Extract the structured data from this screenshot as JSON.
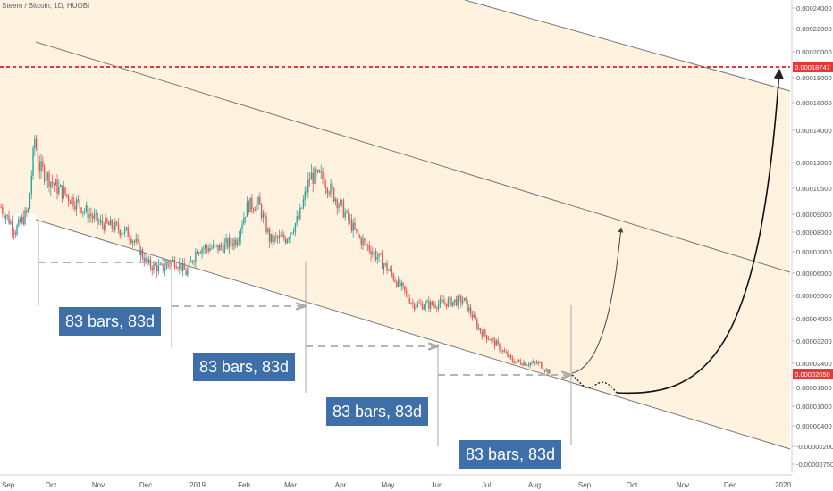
{
  "header": {
    "title": "Steem / Bitcoin, 1D, HUOBI"
  },
  "colors": {
    "up": "#26a69a",
    "down": "#ef5350",
    "channel_fill": "#fff3e0",
    "channel_line": "#6b6b6b",
    "target_line": "#e53935",
    "label_box": "#3f6fa8",
    "price_tag": "#e53935"
  },
  "chart_data": {
    "type": "candlestick",
    "ylim": [
      -7.5e-06,
      0.00024
    ],
    "y_ticks": [
      "0.00024000",
      "0.00022000",
      "0.00020000",
      "0.00018000",
      "0.00016000",
      "0.00014000",
      "0.00012000",
      "0.00010500",
      "0.00009000",
      "0.00008000",
      "0.00007000",
      "0.00006000",
      "0.00005000",
      "0.00004000",
      "0.00003200",
      "0.00002400",
      "0.00001600",
      "0.00001000",
      "0.00000400",
      "-0.00000200",
      "-0.00000750"
    ],
    "x_ticks": [
      "Sep",
      "Oct",
      "Nov",
      "Dec",
      "2019",
      "Feb",
      "Mar",
      "Apr",
      "May",
      "Jun",
      "Jul",
      "Aug",
      "Sep",
      "Oct",
      "Nov",
      "Dec",
      "2020"
    ],
    "target_price": "0.00018747",
    "current_price": "0.00002050",
    "annotations": [
      "83 bars, 83d",
      "83 bars, 83d",
      "83 bars, 83d",
      "83 bars, 83d"
    ],
    "price_path": [
      [
        "2018-09-01",
        9.4e-05
      ],
      [
        "2018-09-10",
        8.1e-05
      ],
      [
        "2018-09-18",
        9.2e-05
      ],
      [
        "2018-09-22",
        0.000135
      ],
      [
        "2018-09-25",
        0.000117
      ],
      [
        "2018-10-05",
        0.000106
      ],
      [
        "2018-10-20",
        9.5e-05
      ],
      [
        "2018-11-01",
        8.5e-05
      ],
      [
        "2018-11-10",
        8.3e-05
      ],
      [
        "2018-11-20",
        7.9e-05
      ],
      [
        "2018-12-01",
        6.4e-05
      ],
      [
        "2018-12-10",
        6.2e-05
      ],
      [
        "2018-12-18",
        6.6e-05
      ],
      [
        "2018-12-25",
        6e-05
      ],
      [
        "2019-01-01",
        7.2e-05
      ],
      [
        "2019-01-15",
        7.2e-05
      ],
      [
        "2019-01-25",
        7.6e-05
      ],
      [
        "2019-02-01",
        9.5e-05
      ],
      [
        "2019-02-08",
        9.6e-05
      ],
      [
        "2019-02-15",
        7.6e-05
      ],
      [
        "2019-02-25",
        7.7e-05
      ],
      [
        "2019-03-05",
        8.8e-05
      ],
      [
        "2019-03-12",
        0.000112
      ],
      [
        "2019-03-20",
        0.000111
      ],
      [
        "2019-04-01",
        9.3e-05
      ],
      [
        "2019-04-10",
        7.8e-05
      ],
      [
        "2019-04-20",
        7e-05
      ],
      [
        "2019-05-01",
        6e-05
      ],
      [
        "2019-05-15",
        4.6e-05
      ],
      [
        "2019-05-25",
        4.6e-05
      ],
      [
        "2019-06-05",
        4.7e-05
      ],
      [
        "2019-06-15",
        4.8e-05
      ],
      [
        "2019-06-25",
        3.6e-05
      ],
      [
        "2019-07-05",
        3.1e-05
      ],
      [
        "2019-07-15",
        2.5e-05
      ],
      [
        "2019-07-25",
        2.4e-05
      ],
      [
        "2019-08-01",
        2.4e-05
      ],
      [
        "2019-08-08",
        2.05e-05
      ]
    ],
    "projection": [
      [
        "2019-08-20",
        1.95e-05
      ],
      [
        "2019-09-20",
        1.8e-05
      ],
      [
        "2019-10-20",
        2.5e-05
      ],
      [
        "2019-11-20",
        5e-05
      ],
      [
        "2019-12-20",
        0.00012
      ],
      [
        "2020-01-10",
        0.00018747
      ]
    ]
  }
}
